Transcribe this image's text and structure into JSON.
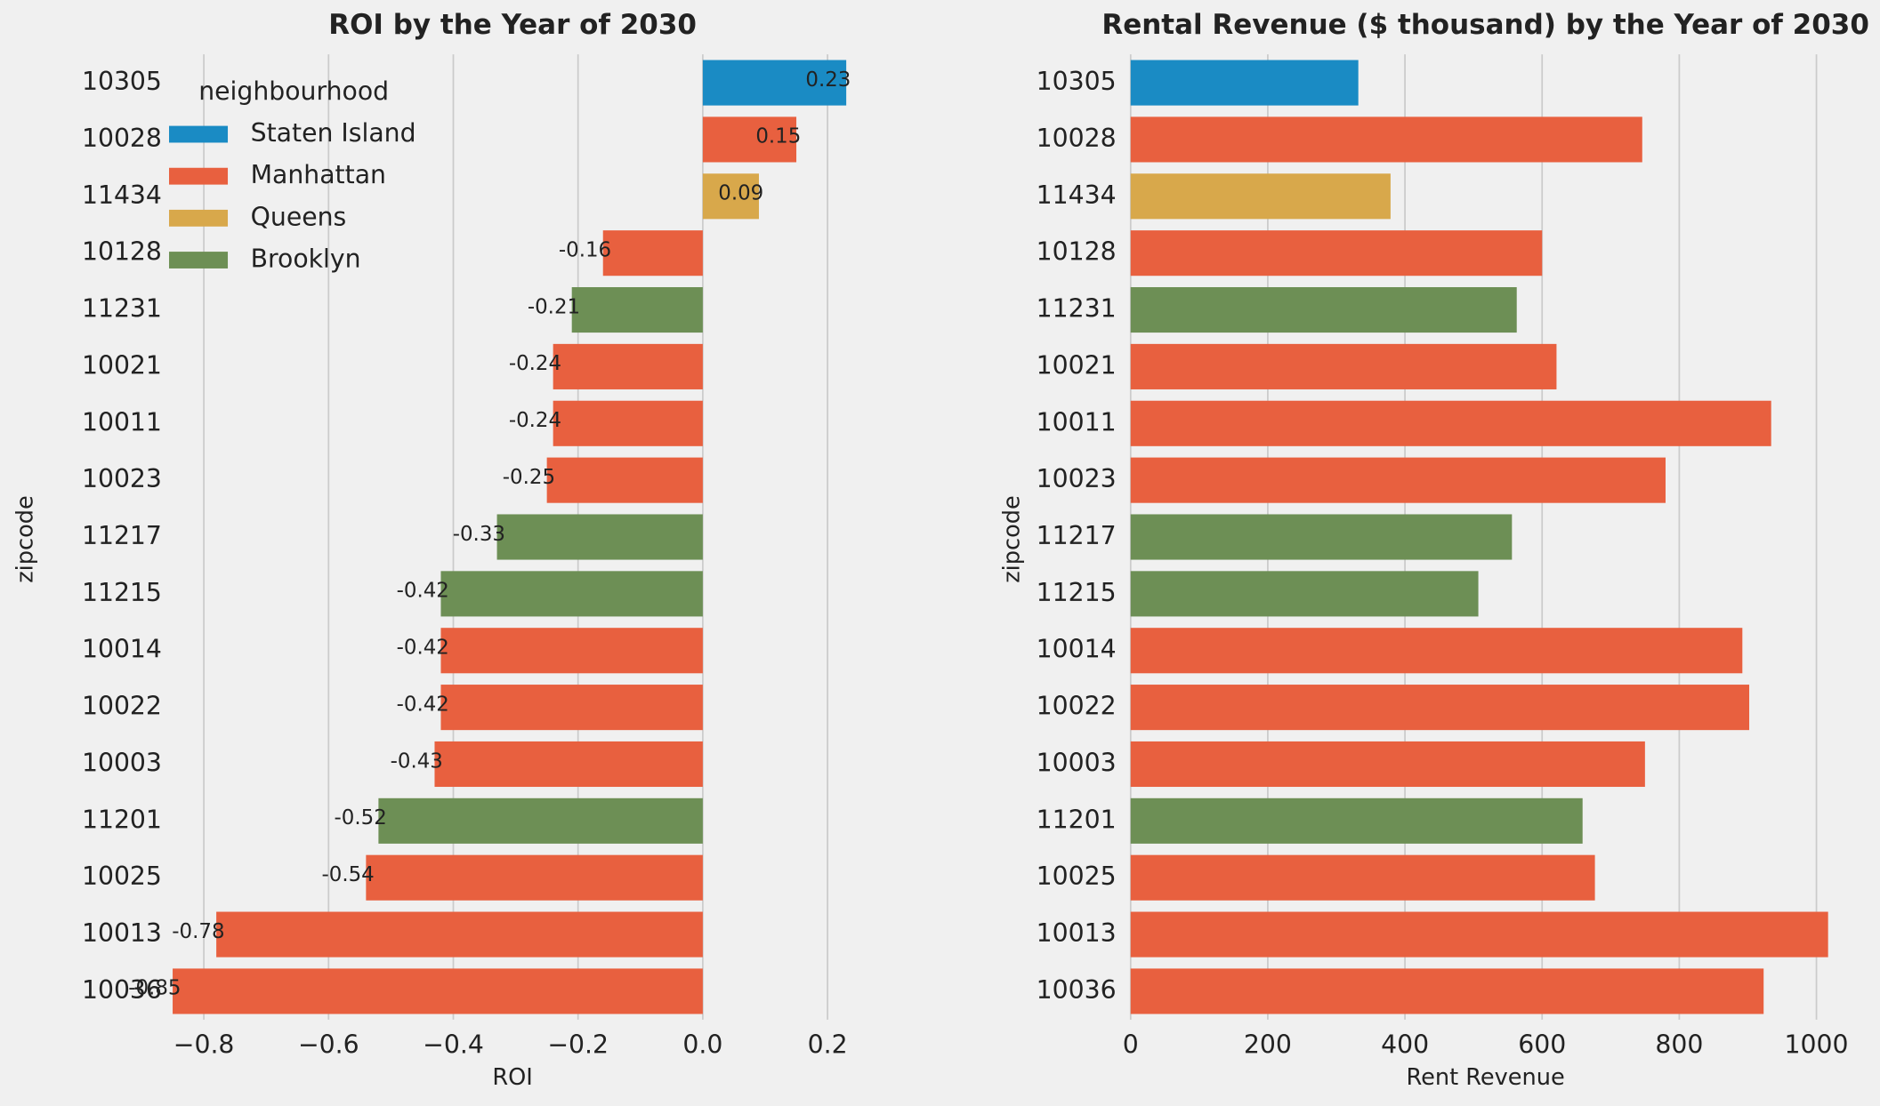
{
  "chart_data": [
    {
      "type": "bar",
      "orientation": "horizontal",
      "title": "ROI by the Year of 2030",
      "xlabel": "ROI",
      "ylabel": "zipcode",
      "categories": [
        "10305",
        "10028",
        "11434",
        "10128",
        "11231",
        "10021",
        "10011",
        "10023",
        "11217",
        "11215",
        "10014",
        "10022",
        "10003",
        "11201",
        "10025",
        "10013",
        "10036"
      ],
      "values": [
        0.23,
        0.15,
        0.09,
        -0.16,
        -0.21,
        -0.24,
        -0.24,
        -0.25,
        -0.33,
        -0.42,
        -0.42,
        -0.42,
        -0.43,
        -0.52,
        -0.54,
        -0.78,
        -0.85
      ],
      "colors": [
        "#1a8bc4",
        "#e8603f",
        "#d8a84b",
        "#e8603f",
        "#6d8f55",
        "#e8603f",
        "#e8603f",
        "#e8603f",
        "#6d8f55",
        "#6d8f55",
        "#e8603f",
        "#e8603f",
        "#e8603f",
        "#6d8f55",
        "#e8603f",
        "#e8603f",
        "#e8603f"
      ],
      "xlim": [
        -0.85,
        0.24
      ],
      "xticks": [
        {
          "value": -0.8,
          "label": "−0.8"
        },
        {
          "value": -0.6,
          "label": "−0.6"
        },
        {
          "value": -0.4,
          "label": "−0.4"
        },
        {
          "value": -0.2,
          "label": "−0.2"
        },
        {
          "value": 0,
          "label": "0.0"
        },
        0.2
      ],
      "grid": true,
      "legend": {
        "title": "neighbourhood",
        "position": "upper left",
        "entries": [
          {
            "name": "Staten Island",
            "color": "#1a8bc4"
          },
          {
            "name": "Manhattan",
            "color": "#e8603f"
          },
          {
            "name": "Queens",
            "color": "#d8a84b"
          },
          {
            "name": "Brooklyn",
            "color": "#6d8f55"
          }
        ]
      }
    },
    {
      "type": "bar",
      "orientation": "horizontal",
      "title": "Rental Revenue ($ thousand) by the Year of 2030",
      "xlabel": "Rent Revenue",
      "ylabel": "zipcode",
      "categories": [
        "10305",
        "10028",
        "11434",
        "10128",
        "11231",
        "10021",
        "10011",
        "10023",
        "11217",
        "11215",
        "10014",
        "10022",
        "10003",
        "11201",
        "10025",
        "10013",
        "10036"
      ],
      "values": [
        332,
        746,
        379,
        600,
        563,
        621,
        934,
        780,
        556,
        507,
        892,
        902,
        750,
        659,
        677,
        1017,
        923
      ],
      "colors": [
        "#1a8bc4",
        "#e8603f",
        "#d8a84b",
        "#e8603f",
        "#6d8f55",
        "#e8603f",
        "#e8603f",
        "#e8603f",
        "#6d8f55",
        "#6d8f55",
        "#e8603f",
        "#e8603f",
        "#e8603f",
        "#6d8f55",
        "#e8603f",
        "#e8603f",
        "#e8603f"
      ],
      "xlim": [
        0,
        1035
      ],
      "xticks": [
        0,
        200,
        400,
        600,
        800,
        1000
      ],
      "grid": true
    }
  ]
}
